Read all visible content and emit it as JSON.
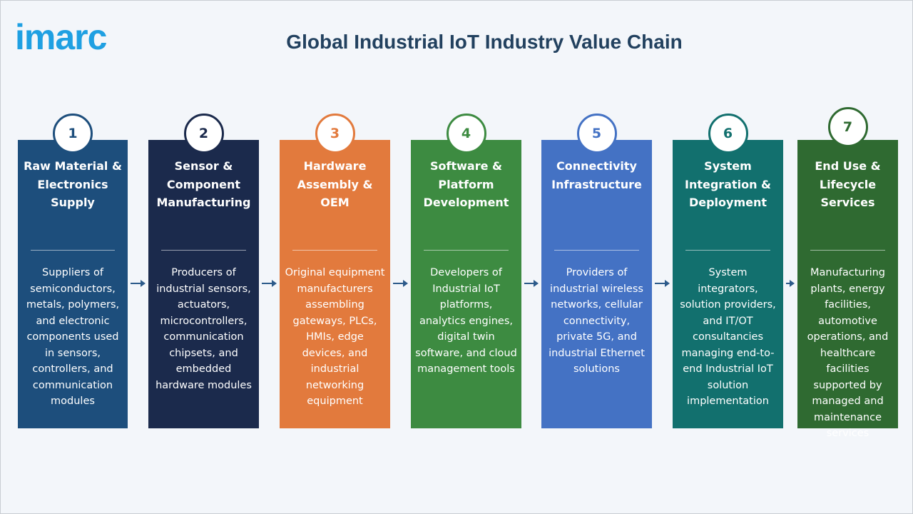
{
  "logo": "imarc",
  "header": {
    "title": "Global Industrial IoT Industry Value Chain"
  },
  "stages": [
    {
      "number": 1,
      "title": "Raw Material & Electronics Supply",
      "color": "#1d4e7c",
      "description": "Suppliers of semiconductors, metals, polymers, and electronic components used in sensors, controllers, and communication modules"
    },
    {
      "number": 2,
      "title": "Sensor & Component Manufacturing",
      "color": "#1b2a4c",
      "description": "Producers of industrial sensors, actuators, microcontrollers, communication chipsets, and embedded hardware modules"
    },
    {
      "number": 3,
      "title": "Hardware Assembly & OEM",
      "color": "#e27a3d",
      "description": "Original equipment manufacturers assembling gateways, PLCs, HMIs, edge devices, and industrial networking equipment"
    },
    {
      "number": 4,
      "title": "Software & Platform Development",
      "color": "#3d8b41",
      "description": "Developers of Industrial IoT platforms, analytics engines, digital twin software, and cloud management tools"
    },
    {
      "number": 5,
      "title": "Connectivity Infrastructure",
      "color": "#4472c4",
      "description": "Providers of industrial wireless networks, cellular connectivity, private 5G, and industrial Ethernet solutions"
    },
    {
      "number": 6,
      "title": "System Integration & Deployment",
      "color": "#12706e",
      "description": "System integrators, solution providers, and IT/OT consultancies managing end-to-end Industrial IoT solution implementation"
    },
    {
      "number": 7,
      "title": "End Use & Lifecycle Services",
      "color": "#2f6a31",
      "description": "Manufacturing plants, energy facilities, automotive operations, and healthcare facilities supported by managed and maintenance services"
    }
  ]
}
